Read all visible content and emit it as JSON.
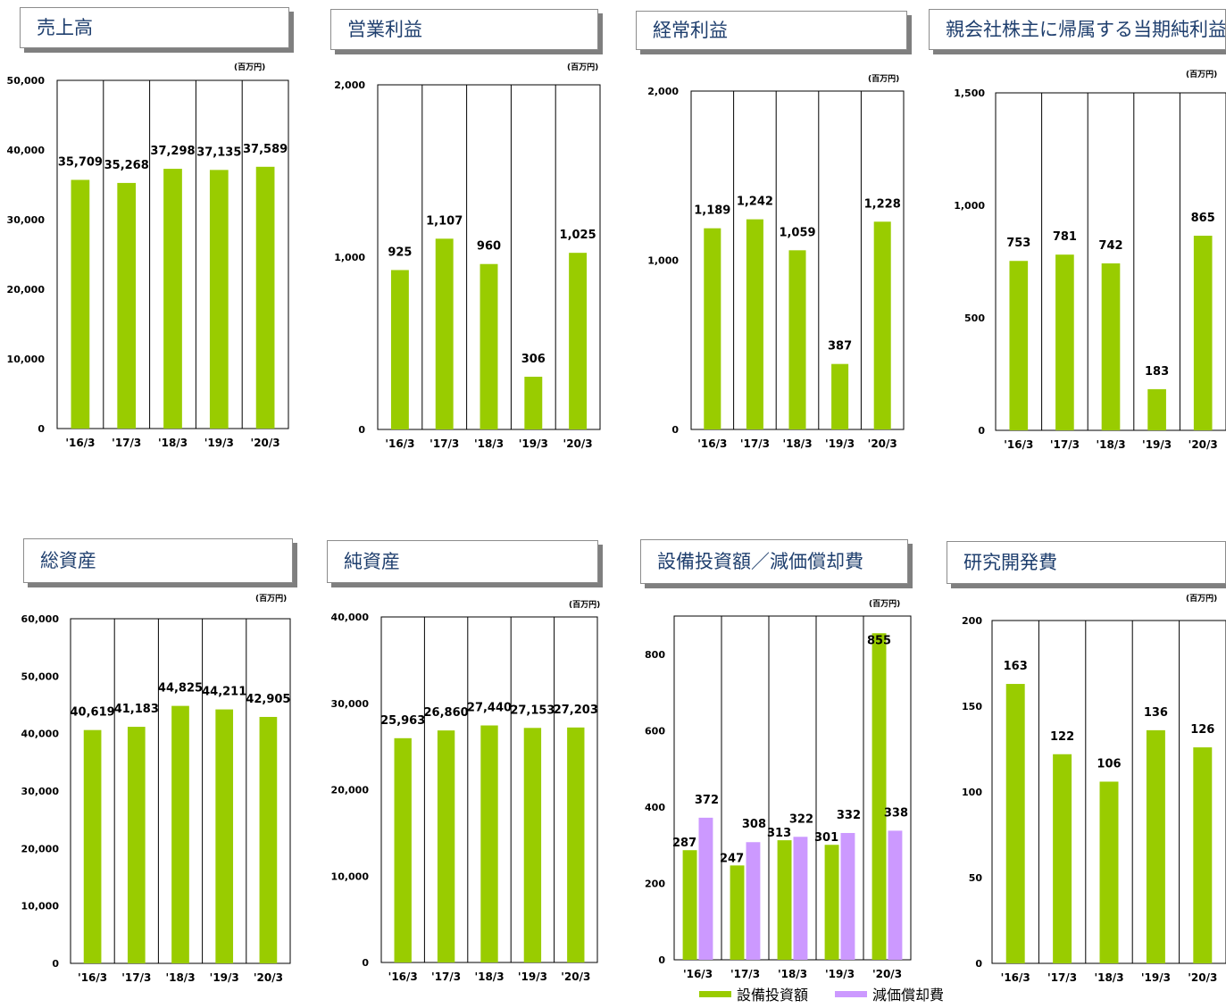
{
  "colors": {
    "primary_bar": "#99cc00",
    "secondary_bar": "#cc99ff",
    "title_text": "#1f3f6e",
    "frame": "#000000"
  },
  "chart_data": [
    {
      "id": "sales",
      "type": "bar",
      "title": "売上高",
      "unit": "(百万円)",
      "categories": [
        "'16/3",
        "'17/3",
        "'18/3",
        "'19/3",
        "'20/3"
      ],
      "series": [
        {
          "values": [
            35709,
            35268,
            37298,
            37135,
            37589
          ]
        }
      ],
      "data_labels": [
        "35,709",
        "35,268",
        "37,298",
        "37,135",
        "37,589"
      ],
      "ylim": [
        0,
        50000
      ],
      "yticks": [
        0,
        10000,
        20000,
        30000,
        40000,
        50000
      ],
      "ytick_labels": [
        "0",
        "10,000",
        "20,000",
        "30,000",
        "40,000",
        "50,000"
      ]
    },
    {
      "id": "operating-income",
      "type": "bar",
      "title": "営業利益",
      "unit": "(百万円)",
      "categories": [
        "'16/3",
        "'17/3",
        "'18/3",
        "'19/3",
        "'20/3"
      ],
      "series": [
        {
          "values": [
            925,
            1107,
            960,
            306,
            1025
          ]
        }
      ],
      "data_labels": [
        "925",
        "1,107",
        "960",
        "306",
        "1,025"
      ],
      "ylim": [
        0,
        2000
      ],
      "yticks": [
        0,
        1000,
        2000
      ],
      "ytick_labels": [
        "0",
        "1,000",
        "2,000"
      ]
    },
    {
      "id": "ordinary-income",
      "type": "bar",
      "title": "経常利益",
      "unit": "(百万円)",
      "categories": [
        "'16/3",
        "'17/3",
        "'18/3",
        "'19/3",
        "'20/3"
      ],
      "series": [
        {
          "values": [
            1189,
            1242,
            1059,
            387,
            1228
          ]
        }
      ],
      "data_labels": [
        "1,189",
        "1,242",
        "1,059",
        "387",
        "1,228"
      ],
      "ylim": [
        0,
        2000
      ],
      "yticks": [
        0,
        1000,
        2000
      ],
      "ytick_labels": [
        "0",
        "1,000",
        "2,000"
      ]
    },
    {
      "id": "net-income",
      "type": "bar",
      "title": "親会社株主に帰属する当期純利益",
      "unit": "(百万円)",
      "categories": [
        "'16/3",
        "'17/3",
        "'18/3",
        "'19/3",
        "'20/3"
      ],
      "series": [
        {
          "values": [
            753,
            781,
            742,
            183,
            865
          ]
        }
      ],
      "data_labels": [
        "753",
        "781",
        "742",
        "183",
        "865"
      ],
      "ylim": [
        0,
        1500
      ],
      "yticks": [
        0,
        500,
        1000,
        1500
      ],
      "ytick_labels": [
        "0",
        "500",
        "1,000",
        "1,500"
      ]
    },
    {
      "id": "total-assets",
      "type": "bar",
      "title": "総資産",
      "unit": "(百万円)",
      "categories": [
        "'16/3",
        "'17/3",
        "'18/3",
        "'19/3",
        "'20/3"
      ],
      "series": [
        {
          "values": [
            40619,
            41183,
            44825,
            44211,
            42905
          ]
        }
      ],
      "data_labels": [
        "40,619",
        "41,183",
        "44,825",
        "44,211",
        "42,905"
      ],
      "ylim": [
        0,
        60000
      ],
      "yticks": [
        0,
        10000,
        20000,
        30000,
        40000,
        50000,
        60000
      ],
      "ytick_labels": [
        "0",
        "10,000",
        "20,000",
        "30,000",
        "40,000",
        "50,000",
        "60,000"
      ]
    },
    {
      "id": "net-assets",
      "type": "bar",
      "title": "純資産",
      "unit": "(百万円)",
      "categories": [
        "'16/3",
        "'17/3",
        "'18/3",
        "'19/3",
        "'20/3"
      ],
      "series": [
        {
          "values": [
            25963,
            26860,
            27440,
            27153,
            27203
          ]
        }
      ],
      "data_labels": [
        "25,963",
        "26,860",
        "27,440",
        "27,153",
        "27,203"
      ],
      "ylim": [
        0,
        40000
      ],
      "yticks": [
        0,
        10000,
        20000,
        30000,
        40000
      ],
      "ytick_labels": [
        "0",
        "10,000",
        "20,000",
        "30,000",
        "40,000"
      ]
    },
    {
      "id": "capex-depreciation",
      "type": "bar",
      "title": "設備投資額／減価償却費",
      "unit": "(百万円)",
      "categories": [
        "'16/3",
        "'17/3",
        "'18/3",
        "'19/3",
        "'20/3"
      ],
      "series": [
        {
          "name": "設備投資額",
          "values": [
            287,
            247,
            313,
            301,
            855
          ],
          "data_labels": [
            "287",
            "247",
            "313",
            "301",
            "855"
          ]
        },
        {
          "name": "減価償却費",
          "values": [
            372,
            308,
            322,
            332,
            338
          ],
          "data_labels": [
            "372",
            "308",
            "322",
            "332",
            "338"
          ]
        }
      ],
      "ylim": [
        0,
        900
      ],
      "yticks": [
        0,
        200,
        400,
        600,
        800
      ],
      "ytick_labels": [
        "0",
        "200",
        "400",
        "600",
        "800"
      ],
      "legend": "bottom"
    },
    {
      "id": "rnd",
      "type": "bar",
      "title": "研究開発費",
      "unit": "(百万円)",
      "categories": [
        "'16/3",
        "'17/3",
        "'18/3",
        "'19/3",
        "'20/3"
      ],
      "series": [
        {
          "values": [
            163,
            122,
            106,
            136,
            126
          ]
        }
      ],
      "data_labels": [
        "163",
        "122",
        "106",
        "136",
        "126"
      ],
      "ylim": [
        0,
        200
      ],
      "yticks": [
        0,
        50,
        100,
        150,
        200
      ],
      "ytick_labels": [
        "0",
        "50",
        "100",
        "150",
        "200"
      ]
    }
  ]
}
